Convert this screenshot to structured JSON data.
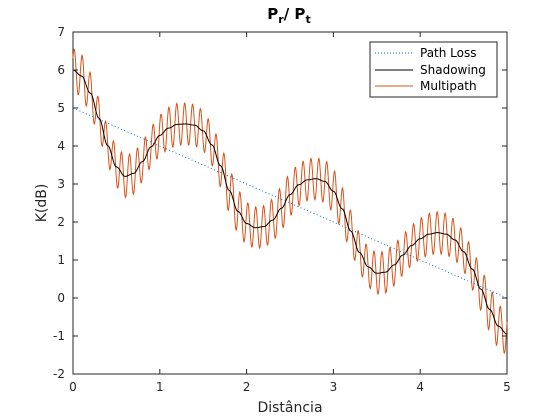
{
  "chart_data": {
    "type": "line",
    "title_main": "P",
    "title_main_sub": "r",
    "title_sep": "/ P",
    "title_sep_sub": "t",
    "xlabel": "Distância",
    "ylabel": "K(dB)",
    "xlim": [
      0,
      5
    ],
    "ylim": [
      -2,
      7
    ],
    "xticks": [
      0,
      1,
      2,
      3,
      4,
      5
    ],
    "yticks": [
      -2,
      -1,
      0,
      1,
      2,
      3,
      4,
      5,
      6,
      7
    ],
    "grid": false,
    "legend_position": "top-right",
    "series": [
      {
        "name": "Path Loss",
        "style": "dotted",
        "color": "#0072BD",
        "x": [
          0,
          5
        ],
        "y": [
          5.0,
          0.0
        ]
      },
      {
        "name": "Shadowing",
        "style": "solid",
        "color": "#000000",
        "x": [
          0.0,
          0.1,
          0.2,
          0.3,
          0.4,
          0.5,
          0.6,
          0.7,
          0.8,
          0.9,
          1.0,
          1.1,
          1.2,
          1.3,
          1.4,
          1.5,
          1.6,
          1.7,
          1.8,
          1.9,
          2.0,
          2.1,
          2.2,
          2.3,
          2.4,
          2.5,
          2.6,
          2.7,
          2.8,
          2.9,
          3.0,
          3.1,
          3.2,
          3.3,
          3.4,
          3.5,
          3.6,
          3.7,
          3.8,
          3.9,
          4.0,
          4.1,
          4.2,
          4.3,
          4.4,
          4.5,
          4.6,
          4.7,
          4.8,
          4.9,
          5.0
        ],
        "y": [
          6.0,
          5.84,
          5.39,
          4.73,
          4.01,
          3.45,
          3.2,
          3.28,
          3.59,
          3.98,
          4.28,
          4.47,
          4.57,
          4.58,
          4.55,
          4.4,
          4.03,
          3.48,
          2.83,
          2.28,
          1.96,
          1.85,
          1.88,
          2.05,
          2.36,
          2.72,
          2.98,
          3.11,
          3.14,
          3.07,
          2.81,
          2.35,
          1.76,
          1.2,
          0.82,
          0.65,
          0.68,
          0.87,
          1.13,
          1.38,
          1.56,
          1.68,
          1.72,
          1.68,
          1.53,
          1.22,
          0.76,
          0.23,
          -0.3,
          -0.74,
          -0.95
        ]
      },
      {
        "name": "Multipath",
        "style": "solid",
        "color": "#D95319",
        "oscillation": {
          "around_series": "Shadowing",
          "amplitude_db": 0.55,
          "cycles_per_unit": 11
        }
      }
    ]
  }
}
